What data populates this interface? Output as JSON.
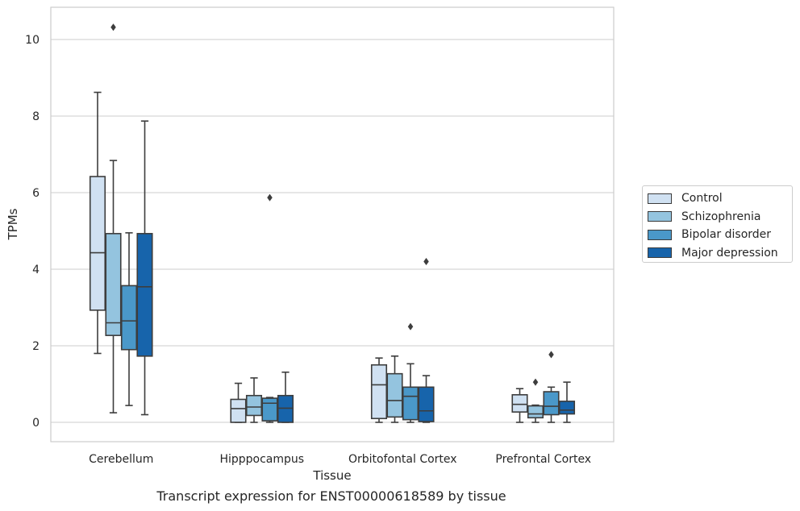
{
  "chart_data": {
    "type": "box",
    "title": "",
    "caption": "Transcript expression for ENST00000618589 by tissue",
    "xlabel": "Tissue",
    "ylabel": "TPMs",
    "ylim": [
      -0.5,
      10.8
    ],
    "yticks": [
      "0",
      "2",
      "4",
      "6",
      "8",
      "10"
    ],
    "grid": "horizontal",
    "legend_position": "right",
    "categories": [
      "Cerebellum",
      "Hipppocampus",
      "Orbitofontal Cortex",
      "Prefrontal Cortex"
    ],
    "series": [
      {
        "name": "Control",
        "color": "#d0e1f2",
        "boxes": [
          {
            "min": 1.8,
            "q1": 2.93,
            "median": 4.43,
            "q3": 6.42,
            "max": 8.62,
            "outliers": []
          },
          {
            "min": 0.0,
            "q1": 0.0,
            "median": 0.36,
            "q3": 0.6,
            "max": 1.02,
            "outliers": []
          },
          {
            "min": 0.0,
            "q1": 0.1,
            "median": 0.98,
            "q3": 1.5,
            "max": 1.68,
            "outliers": []
          },
          {
            "min": 0.0,
            "q1": 0.27,
            "median": 0.47,
            "q3": 0.72,
            "max": 0.88,
            "outliers": []
          }
        ]
      },
      {
        "name": "Schizophrenia",
        "color": "#94c4df",
        "boxes": [
          {
            "min": 0.25,
            "q1": 2.27,
            "median": 2.6,
            "q3": 4.93,
            "max": 6.84,
            "outliers": [
              10.32
            ]
          },
          {
            "min": 0.0,
            "q1": 0.18,
            "median": 0.4,
            "q3": 0.7,
            "max": 1.16,
            "outliers": []
          },
          {
            "min": 0.0,
            "q1": 0.14,
            "median": 0.57,
            "q3": 1.27,
            "max": 1.73,
            "outliers": []
          },
          {
            "min": 0.0,
            "q1": 0.12,
            "median": 0.22,
            "q3": 0.43,
            "max": 0.45,
            "outliers": [
              1.05
            ]
          }
        ]
      },
      {
        "name": "Bipolar disorder",
        "color": "#4a98c9",
        "boxes": [
          {
            "min": 0.44,
            "q1": 1.9,
            "median": 2.65,
            "q3": 3.57,
            "max": 4.95,
            "outliers": []
          },
          {
            "min": 0.0,
            "q1": 0.04,
            "median": 0.5,
            "q3": 0.63,
            "max": 0.65,
            "outliers": [
              5.87
            ]
          },
          {
            "min": 0.0,
            "q1": 0.07,
            "median": 0.68,
            "q3": 0.92,
            "max": 1.53,
            "outliers": [
              2.5
            ]
          },
          {
            "min": 0.0,
            "q1": 0.2,
            "median": 0.42,
            "q3": 0.8,
            "max": 0.92,
            "outliers": [
              1.77
            ]
          }
        ]
      },
      {
        "name": "Major depression",
        "color": "#1764ab",
        "boxes": [
          {
            "min": 0.2,
            "q1": 1.73,
            "median": 3.54,
            "q3": 4.93,
            "max": 7.87,
            "outliers": []
          },
          {
            "min": 0.0,
            "q1": 0.0,
            "median": 0.37,
            "q3": 0.7,
            "max": 1.31,
            "outliers": []
          },
          {
            "min": 0.0,
            "q1": 0.02,
            "median": 0.3,
            "q3": 0.92,
            "max": 1.22,
            "outliers": [
              4.2
            ]
          },
          {
            "min": 0.0,
            "q1": 0.22,
            "median": 0.32,
            "q3": 0.55,
            "max": 1.05,
            "outliers": []
          }
        ]
      }
    ]
  }
}
